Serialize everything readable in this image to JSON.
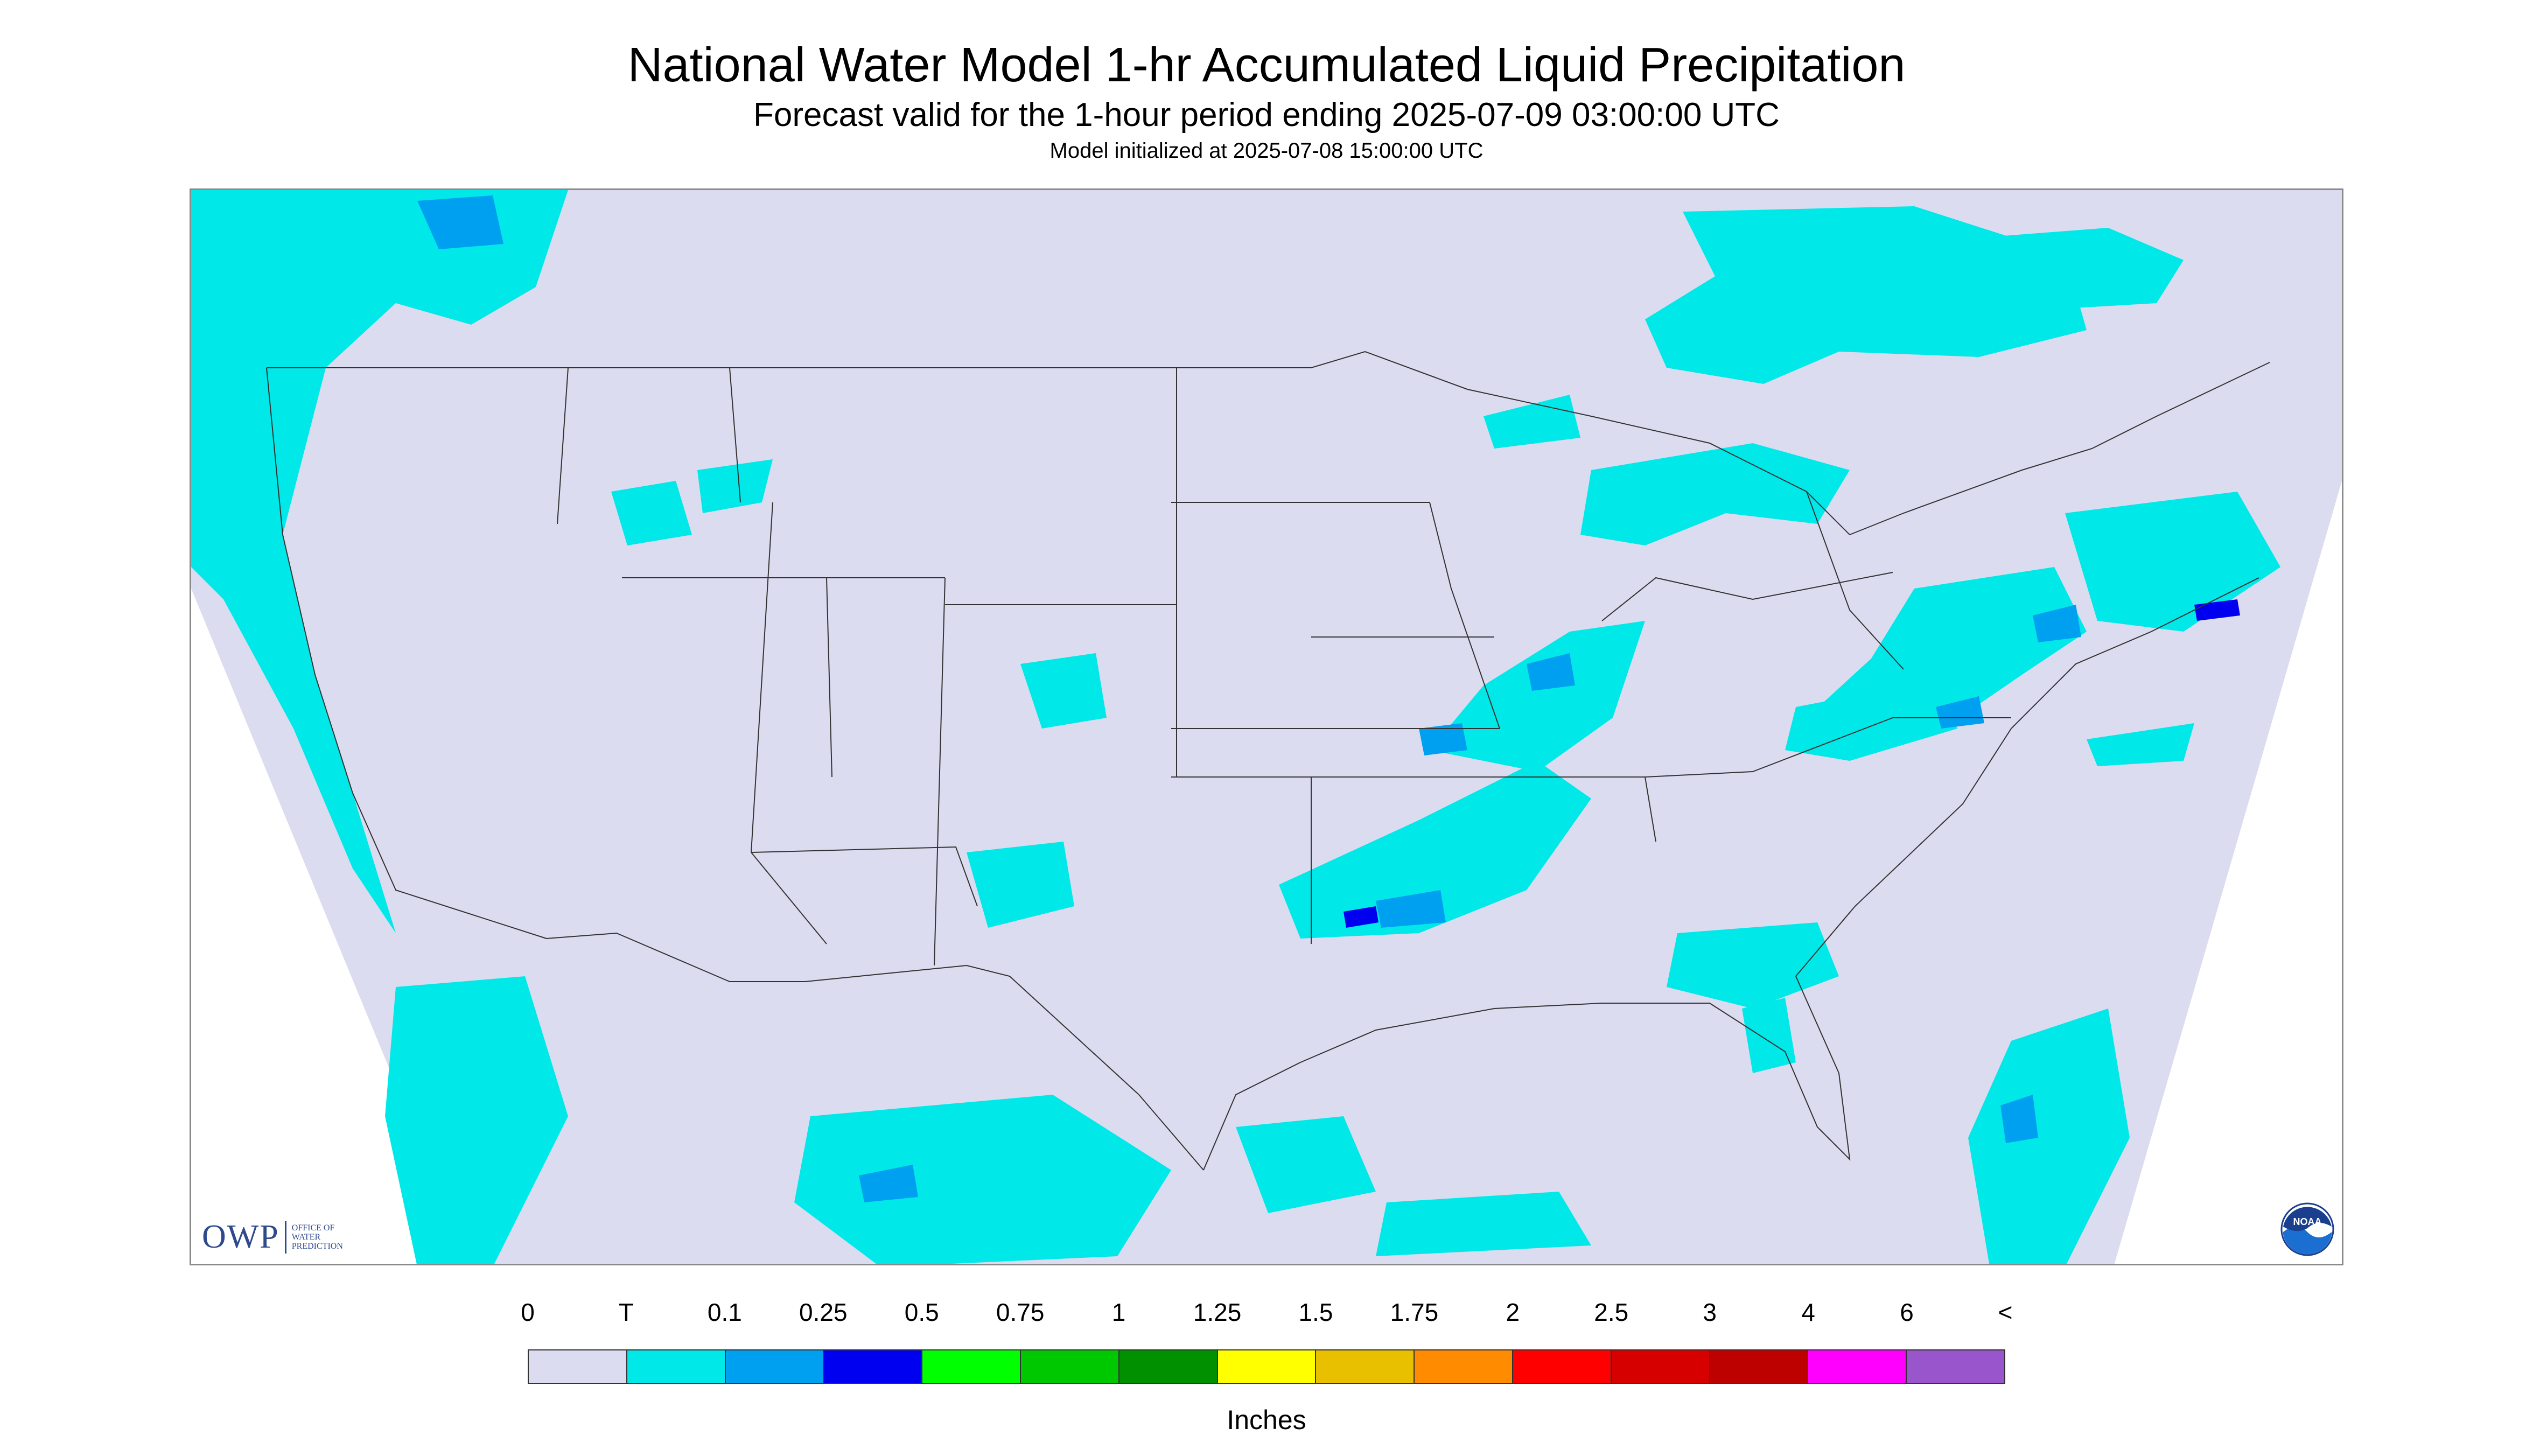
{
  "title": "National Water Model 1-hr Accumulated Liquid Precipitation",
  "subtitle": "Forecast valid for the 1-hour period ending 2025-07-09 03:00:00 UTC",
  "init_line": "Model initialized at 2025-07-08 15:00:00 UTC",
  "logos": {
    "owp_letters": "OWP",
    "owp_line1": "Office of",
    "owp_line2": "Water",
    "owp_line3": "Prediction",
    "noaa_text": "NOAA"
  },
  "legend": {
    "tick_labels": [
      "0",
      "T",
      "0.1",
      "0.25",
      "0.5",
      "0.75",
      "1",
      "1.25",
      "1.5",
      "1.75",
      "2",
      "2.5",
      "3",
      "4",
      "6",
      "<"
    ],
    "colors": [
      "#dcdcf0",
      "#00e8e8",
      "#00a0f0",
      "#0000f0",
      "#00ff00",
      "#00c800",
      "#009000",
      "#ffff00",
      "#e8c000",
      "#ff8c00",
      "#ff0000",
      "#d70000",
      "#bd0000",
      "#ff00ff",
      "#9955cc"
    ],
    "units": "Inches"
  },
  "map": {
    "background_color": "#dcdcf0",
    "trace_color": "#00e8e8",
    "light_color": "#00a0f0",
    "moderate_color": "#0000f0"
  }
}
